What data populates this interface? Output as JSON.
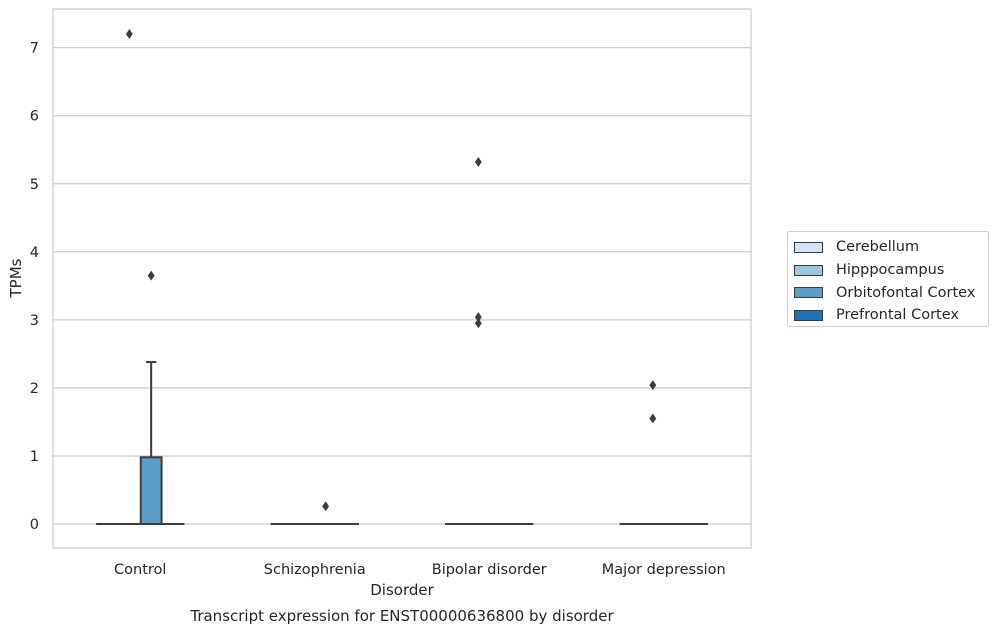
{
  "chart_data": {
    "type": "box",
    "title": "Transcript expression for ENST00000636800 by disorder",
    "xlabel": "Disorder",
    "ylabel": "TPMs",
    "categories": [
      "Control",
      "Schizophrenia",
      "Bipolar disorder",
      "Major depression"
    ],
    "ylim": [
      -0.35,
      7.55
    ],
    "yticks": [
      0,
      1,
      2,
      3,
      4,
      5,
      6,
      7
    ],
    "grid": "horizontal",
    "legend_position": "right",
    "series": [
      {
        "name": "Cerebellum",
        "color": "#d2e3f3",
        "boxes": [
          {
            "category": "Control",
            "q1": 0,
            "median": 0,
            "q3": 0,
            "whisker_low": 0,
            "whisker_high": 0,
            "outliers": []
          },
          {
            "category": "Schizophrenia",
            "q1": 0,
            "median": 0,
            "q3": 0,
            "whisker_low": 0,
            "whisker_high": 0,
            "outliers": []
          },
          {
            "category": "Bipolar disorder",
            "q1": 0,
            "median": 0,
            "q3": 0,
            "whisker_low": 0,
            "whisker_high": 0,
            "outliers": []
          },
          {
            "category": "Major depression",
            "q1": 0,
            "median": 0,
            "q3": 0,
            "whisker_low": 0,
            "whisker_high": 0,
            "outliers": []
          }
        ]
      },
      {
        "name": "Hipppocampus",
        "color": "#9ac8e0",
        "boxes": [
          {
            "category": "Control",
            "q1": 0,
            "median": 0,
            "q3": 0,
            "whisker_low": 0,
            "whisker_high": 0,
            "outliers": [
              7.2
            ]
          },
          {
            "category": "Schizophrenia",
            "q1": 0,
            "median": 0,
            "q3": 0,
            "whisker_low": 0,
            "whisker_high": 0,
            "outliers": []
          },
          {
            "category": "Bipolar disorder",
            "q1": 0,
            "median": 0,
            "q3": 0,
            "whisker_low": 0,
            "whisker_high": 0,
            "outliers": [
              5.32,
              3.04,
              2.95
            ]
          },
          {
            "category": "Major depression",
            "q1": 0,
            "median": 0,
            "q3": 0,
            "whisker_low": 0,
            "whisker_high": 0,
            "outliers": [
              2.04,
              1.55
            ]
          }
        ]
      },
      {
        "name": "Orbitofontal Cortex",
        "color": "#5a9ec9",
        "boxes": [
          {
            "category": "Control",
            "q1": 0,
            "median": 0,
            "q3": 0.98,
            "whisker_low": 0,
            "whisker_high": 2.38,
            "outliers": [
              3.65
            ]
          },
          {
            "category": "Schizophrenia",
            "q1": 0,
            "median": 0,
            "q3": 0,
            "whisker_low": 0,
            "whisker_high": 0,
            "outliers": [
              0.26
            ]
          },
          {
            "category": "Bipolar disorder",
            "q1": 0,
            "median": 0,
            "q3": 0,
            "whisker_low": 0,
            "whisker_high": 0,
            "outliers": []
          },
          {
            "category": "Major depression",
            "q1": 0,
            "median": 0,
            "q3": 0,
            "whisker_low": 0,
            "whisker_high": 0,
            "outliers": []
          }
        ]
      },
      {
        "name": "Prefrontal Cortex",
        "color": "#2171b5",
        "boxes": [
          {
            "category": "Control",
            "q1": 0,
            "median": 0,
            "q3": 0,
            "whisker_low": 0,
            "whisker_high": 0,
            "outliers": []
          },
          {
            "category": "Schizophrenia",
            "q1": 0,
            "median": 0,
            "q3": 0,
            "whisker_low": 0,
            "whisker_high": 0,
            "outliers": []
          },
          {
            "category": "Bipolar disorder",
            "q1": 0,
            "median": 0,
            "q3": 0,
            "whisker_low": 0,
            "whisker_high": 0,
            "outliers": []
          },
          {
            "category": "Major depression",
            "q1": 0,
            "median": 0,
            "q3": 0,
            "whisker_low": 0,
            "whisker_high": 0,
            "outliers": []
          }
        ]
      }
    ]
  }
}
